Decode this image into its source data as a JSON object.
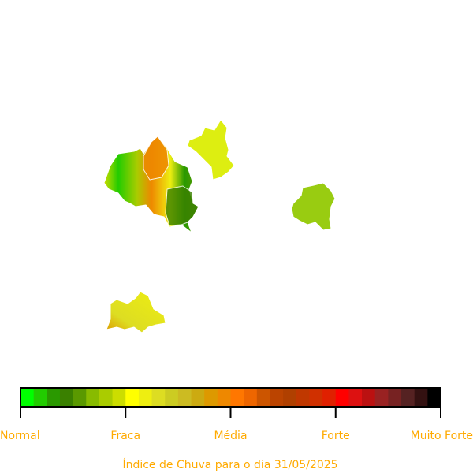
{
  "colorbar": {
    "labels": [
      "Normal",
      "Fraca",
      "Média",
      "Forte",
      "Muito Forte"
    ],
    "colors": [
      "#00ff00",
      "#22cc00",
      "#2a9900",
      "#3a8000",
      "#5a9900",
      "#88bb00",
      "#aacc00",
      "#ccdd00",
      "#ffff00",
      "#eeee11",
      "#dddd22",
      "#cccc22",
      "#ccbb22",
      "#ccaa11",
      "#dd9900",
      "#ee8800",
      "#ff7700",
      "#ee6600",
      "#cc5500",
      "#bb4400",
      "#b04000",
      "#c03800",
      "#d03000",
      "#e02000",
      "#ff0000",
      "#dd1111",
      "#bb1111",
      "#992222",
      "#772222",
      "#552222",
      "#331111",
      "#000000"
    ],
    "label_color": "#ffaa00"
  },
  "caption": "Índice de Chuva para o dia 31/05/2025"
}
